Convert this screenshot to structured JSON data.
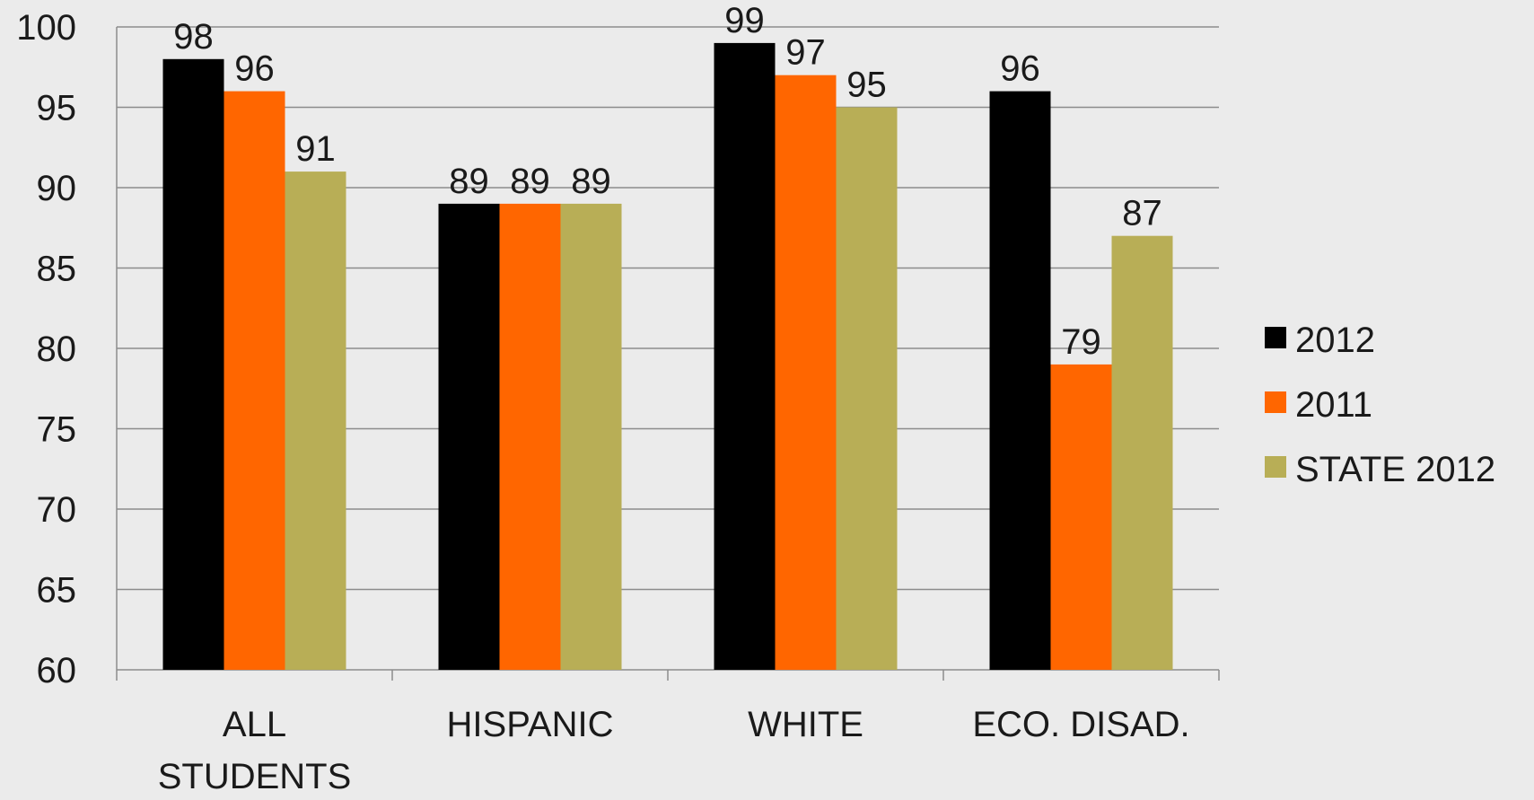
{
  "chart_data": {
    "type": "bar",
    "categories": [
      [
        "ALL",
        "STUDENTS"
      ],
      [
        "HISPANIC"
      ],
      [
        "WHITE"
      ],
      [
        "ECO. DISAD."
      ]
    ],
    "series": [
      {
        "name": "2012",
        "color": "#000000",
        "values": [
          98,
          89,
          99,
          96
        ]
      },
      {
        "name": "2011",
        "color": "#ff6600",
        "values": [
          96,
          89,
          97,
          79
        ]
      },
      {
        "name": "STATE 2012",
        "color": "#b8ae56",
        "values": [
          91,
          89,
          95,
          87
        ]
      }
    ],
    "ylim": [
      60,
      100
    ],
    "yticks": [
      60,
      65,
      70,
      75,
      80,
      85,
      90,
      95,
      100
    ],
    "grid": true,
    "legend_position": "right",
    "data_labels": true,
    "title": "",
    "xlabel": "",
    "ylabel": ""
  }
}
